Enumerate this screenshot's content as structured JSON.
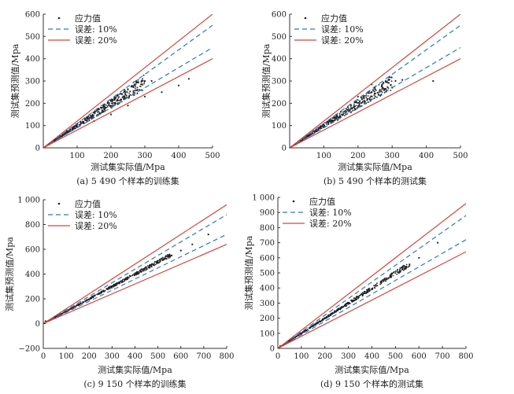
{
  "chart_data": [
    {
      "type": "scatter",
      "caption": "(a) 5 490 个样本的训练集",
      "xlabel": "测试集实际值/Mpa",
      "ylabel": "测试集预测值/Mpa",
      "xlim": [
        0,
        500
      ],
      "ylim": [
        0,
        600
      ],
      "xticks": [
        100,
        200,
        300,
        400,
        500
      ],
      "xtick_labels": [
        "100",
        "200",
        "300",
        "400",
        "500"
      ],
      "yticks": [
        0,
        100,
        200,
        300,
        400,
        500,
        600
      ],
      "ytick_labels": [
        "0",
        "100",
        "200",
        "300",
        "400",
        "500",
        "600"
      ],
      "legend_position": "top-left",
      "legend": [
        {
          "label": "应力值",
          "style": "dot",
          "color": "#222222"
        },
        {
          "label": "误差: 10%",
          "style": "dashed",
          "color": "#2a7bbf"
        },
        {
          "label": "误差: 20%",
          "style": "solid",
          "color": "#d9453c"
        }
      ],
      "series": [
        {
          "type": "points",
          "x": [
            30,
            50,
            70,
            90,
            110,
            130,
            150,
            170,
            190,
            210,
            230,
            250,
            270,
            290,
            300,
            320,
            150,
            200,
            250,
            300,
            350,
            400,
            430,
            120,
            160,
            180,
            220,
            240,
            260,
            280
          ],
          "y": [
            32,
            54,
            76,
            96,
            118,
            138,
            160,
            180,
            200,
            222,
            242,
            262,
            282,
            298,
            300,
            300,
            120,
            150,
            190,
            230,
            250,
            280,
            310,
            110,
            175,
            195,
            235,
            255,
            275,
            295
          ]
        },
        {
          "type": "line",
          "style": "dashed",
          "x": [
            0,
            500
          ],
          "y": [
            0,
            550
          ]
        },
        {
          "type": "line",
          "style": "dashed",
          "x": [
            0,
            500
          ],
          "y": [
            0,
            450
          ]
        },
        {
          "type": "line",
          "style": "solid",
          "x": [
            0,
            500
          ],
          "y": [
            0,
            600
          ]
        },
        {
          "type": "line",
          "style": "solid",
          "x": [
            0,
            500
          ],
          "y": [
            0,
            400
          ]
        }
      ]
    },
    {
      "type": "scatter",
      "caption": "(b) 5 490 个样本的测试集",
      "xlabel": "测试集实际值/Mpa",
      "ylabel": "测试集预测值/Mpa",
      "xlim": [
        0,
        500
      ],
      "ylim": [
        0,
        600
      ],
      "xticks": [
        100,
        200,
        300,
        400,
        500
      ],
      "xtick_labels": [
        "100",
        "200",
        "300",
        "400",
        "500"
      ],
      "yticks": [
        0,
        100,
        200,
        300,
        400,
        500,
        600
      ],
      "ytick_labels": [
        "0",
        "100",
        "200",
        "300",
        "400",
        "500",
        "600"
      ],
      "legend_position": "top-left",
      "legend": [
        {
          "label": "应力值",
          "style": "dot",
          "color": "#222222"
        },
        {
          "label": "误差: 10%",
          "style": "dashed",
          "color": "#2a7bbf"
        },
        {
          "label": "误差: 20%",
          "style": "solid",
          "color": "#d9453c"
        }
      ],
      "series": [
        {
          "type": "points",
          "x": [
            30,
            50,
            70,
            90,
            110,
            130,
            150,
            170,
            190,
            210,
            230,
            250,
            270,
            290,
            310,
            330,
            420,
            140,
            180,
            220,
            260,
            300,
            200,
            240
          ],
          "y": [
            32,
            54,
            76,
            98,
            118,
            140,
            162,
            182,
            205,
            225,
            246,
            262,
            280,
            292,
            300,
            305,
            300,
            125,
            160,
            200,
            240,
            270,
            230,
            285
          ]
        },
        {
          "type": "line",
          "style": "dashed",
          "x": [
            0,
            500
          ],
          "y": [
            0,
            550
          ]
        },
        {
          "type": "line",
          "style": "dashed",
          "x": [
            0,
            500
          ],
          "y": [
            0,
            450
          ]
        },
        {
          "type": "line",
          "style": "solid",
          "x": [
            0,
            500
          ],
          "y": [
            0,
            600
          ]
        },
        {
          "type": "line",
          "style": "solid",
          "x": [
            0,
            500
          ],
          "y": [
            0,
            400
          ]
        }
      ]
    },
    {
      "type": "scatter",
      "caption": "(c) 9 150 个样本的训练集",
      "xlabel": "测试集实际值/Mpa",
      "ylabel": "测试集预测值/Mpa",
      "xlim": [
        0,
        800
      ],
      "ylim": [
        -200,
        1000
      ],
      "xticks": [
        0,
        100,
        200,
        300,
        400,
        500,
        600,
        700,
        800
      ],
      "xtick_labels": [
        "0",
        "100",
        "200",
        "300",
        "400",
        "500",
        "600",
        "700",
        "800"
      ],
      "yticks": [
        -200,
        0,
        200,
        400,
        600,
        800,
        1000
      ],
      "ytick_labels": [
        "−200",
        "0",
        "200",
        "400",
        "600",
        "800",
        "1 000"
      ],
      "legend_position": "top-left",
      "legend": [
        {
          "label": "应力值",
          "style": "dot",
          "color": "#222222"
        },
        {
          "label": "误差: 10%",
          "style": "dashed",
          "color": "#2a7bbf"
        },
        {
          "label": "误差: 20%",
          "style": "solid",
          "color": "#d9453c"
        }
      ],
      "series": [
        {
          "type": "points",
          "x": [
            10,
            40,
            80,
            120,
            160,
            200,
            240,
            280,
            320,
            360,
            400,
            440,
            480,
            520,
            560,
            600,
            650,
            720
          ],
          "y": [
            20,
            40,
            78,
            118,
            158,
            198,
            238,
            278,
            318,
            356,
            396,
            436,
            474,
            512,
            550,
            590,
            640,
            720
          ]
        },
        {
          "type": "line",
          "style": "dashed",
          "x": [
            0,
            800
          ],
          "y": [
            0,
            880
          ]
        },
        {
          "type": "line",
          "style": "dashed",
          "x": [
            0,
            800
          ],
          "y": [
            0,
            720
          ]
        },
        {
          "type": "line",
          "style": "solid",
          "x": [
            0,
            800
          ],
          "y": [
            0,
            960
          ]
        },
        {
          "type": "line",
          "style": "solid",
          "x": [
            0,
            800
          ],
          "y": [
            0,
            640
          ]
        }
      ]
    },
    {
      "type": "scatter",
      "caption": "(d) 9 150 个样本的测试集",
      "xlabel": "测试集实际值/Mpa",
      "ylabel": "测试集预测值/Mpa",
      "xlim": [
        0,
        800
      ],
      "ylim": [
        0,
        1000
      ],
      "xticks": [
        0,
        100,
        200,
        300,
        400,
        500,
        600,
        700,
        800
      ],
      "xtick_labels": [
        "0",
        "100",
        "200",
        "300",
        "400",
        "500",
        "600",
        "700",
        "800"
      ],
      "yticks": [
        0,
        100,
        200,
        300,
        400,
        500,
        600,
        700,
        800,
        900,
        1000
      ],
      "ytick_labels": [
        "0",
        "100",
        "200",
        "300",
        "400",
        "500",
        "600",
        "700",
        "800",
        "900",
        "1 000"
      ],
      "legend_position": "top-left",
      "legend": [
        {
          "label": "应力值",
          "style": "dot",
          "color": "#222222"
        },
        {
          "label": "误差: 10%",
          "style": "dashed",
          "color": "#2a7bbf"
        },
        {
          "label": "误差: 20%",
          "style": "solid",
          "color": "#d9453c"
        }
      ],
      "series": [
        {
          "type": "points",
          "x": [
            10,
            40,
            80,
            120,
            160,
            200,
            240,
            280,
            320,
            360,
            400,
            440,
            480,
            520,
            560,
            600,
            680
          ],
          "y": [
            15,
            42,
            80,
            120,
            158,
            198,
            238,
            278,
            318,
            358,
            396,
            436,
            476,
            516,
            556,
            600,
            700
          ]
        },
        {
          "type": "line",
          "style": "dashed",
          "x": [
            0,
            800
          ],
          "y": [
            0,
            880
          ]
        },
        {
          "type": "line",
          "style": "dashed",
          "x": [
            0,
            800
          ],
          "y": [
            0,
            720
          ]
        },
        {
          "type": "line",
          "style": "solid",
          "x": [
            0,
            800
          ],
          "y": [
            0,
            960
          ]
        },
        {
          "type": "line",
          "style": "solid",
          "x": [
            0,
            800
          ],
          "y": [
            0,
            640
          ]
        }
      ]
    }
  ]
}
